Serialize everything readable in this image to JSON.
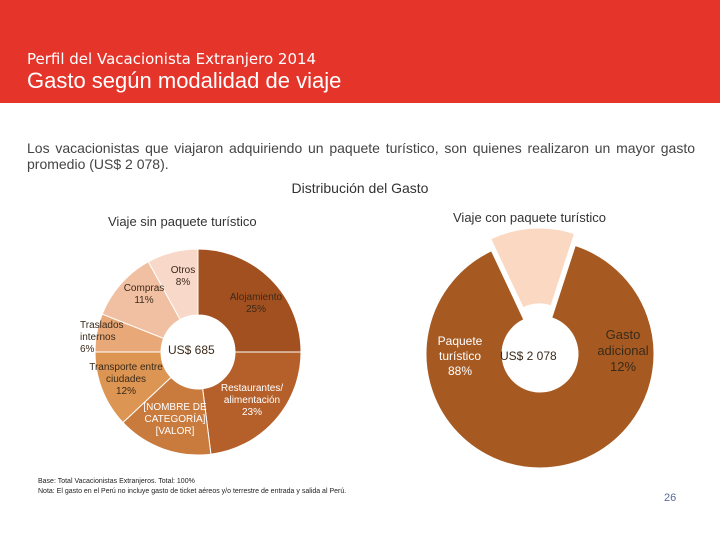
{
  "header": {
    "subtitle": "Perfil del Vacacionista Extranjero 2014",
    "title": "Gasto según modalidad de viaje"
  },
  "description": "Los vacacionistas que viajaron adquiriendo un paquete turístico, son quienes realizaron un mayor gasto promedio (US$ 2 078).",
  "section_title": "Distribución del Gasto",
  "footnotes": {
    "base": "Base: Total Vacacionistas Extranjeros.     Total: 100%",
    "nota": "Nota: El gasto en el Perú no incluye gasto de ticket aéreos y/o terrestre de entrada y salida al Perú."
  },
  "page_number": "26",
  "colors": {
    "header": "#e5352b",
    "paquete": "#a65a22"
  },
  "chart_data": [
    {
      "type": "pie",
      "title": "Viaje sin paquete turístico",
      "center_label": "US$ 685",
      "slices": [
        {
          "label": "Alojamiento",
          "value": 25,
          "display": "Alojamiento\n25%",
          "color": "#a2501f"
        },
        {
          "label": "Restaurantes/ alimentación",
          "value": 23,
          "display": "Restaurantes/\nalimentación\n23%",
          "color": "#b5602a"
        },
        {
          "label": "[NOMBRE DE CATEGORÍA]",
          "value": 15,
          "display": "[NOMBRE DE\nCATEGORÍA]\n[VALOR]",
          "color": "#c97a3d"
        },
        {
          "label": "Transporte entre ciudades",
          "value": 12,
          "display": "Transporte entre\nciudades\n12%",
          "color": "#dc9552"
        },
        {
          "label": "Traslados internos",
          "value": 6,
          "display": "Traslados\ninternos\n6%",
          "color": "#e8a878"
        },
        {
          "label": "Compras",
          "value": 11,
          "display": "Compras\n11%",
          "color": "#f1c0a2"
        },
        {
          "label": "Otros",
          "value": 8,
          "display": "Otros\n8%",
          "color": "#f8d8c8"
        }
      ]
    },
    {
      "type": "pie",
      "title": "Viaje con paquete turístico",
      "center_label": "US$  2 078",
      "slices": [
        {
          "label": "Paquete turístico",
          "value": 88,
          "display": "Paquete\nturístico\n88%",
          "color": "#a65a22"
        },
        {
          "label": "Gasto adicional",
          "value": 12,
          "display": "Gasto\nadicional\n12%",
          "color": "#fad8c2"
        }
      ]
    }
  ]
}
